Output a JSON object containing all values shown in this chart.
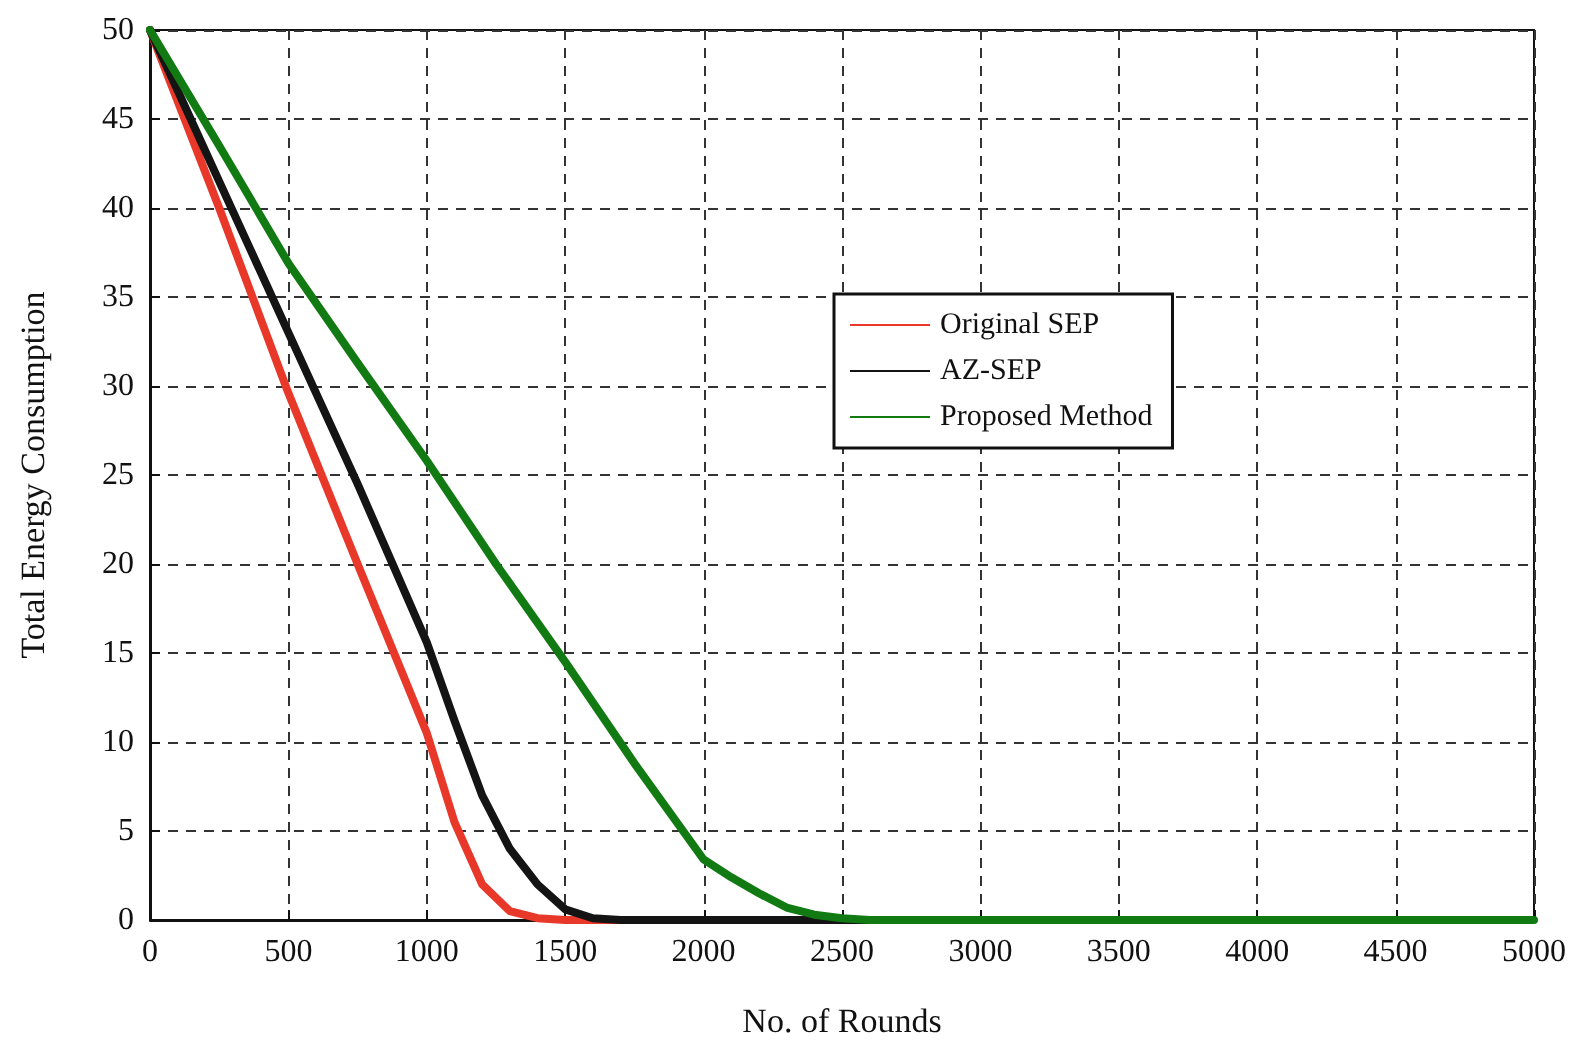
{
  "chart_data": {
    "type": "line",
    "xlabel": "No. of Rounds",
    "ylabel": "Total Energy Consumption",
    "xlim": [
      0,
      5000
    ],
    "xticks": [
      0,
      500,
      1000,
      1500,
      2000,
      2500,
      3000,
      3500,
      4000,
      4500,
      5000
    ],
    "ylim": [
      0,
      50
    ],
    "yticks": [
      0,
      5,
      10,
      15,
      20,
      25,
      30,
      35,
      40,
      45,
      50
    ],
    "grid": true,
    "legend": "right",
    "line_style": "solid",
    "series": [
      {
        "name": "Original SEP",
        "color": "#e8382a",
        "x": [
          0,
          250,
          500,
          750,
          1000,
          1100,
          1200,
          1300,
          1400,
          1500,
          1800
        ],
        "values": [
          50,
          40,
          29.6,
          20,
          10.5,
          5.5,
          2,
          0.5,
          0.1,
          0,
          0
        ]
      },
      {
        "name": "AZ-SEP",
        "color": "#141414",
        "x": [
          0,
          250,
          500,
          750,
          1000,
          1100,
          1200,
          1300,
          1400,
          1500,
          1600,
          1700,
          2800
        ],
        "values": [
          50,
          41.5,
          33,
          24.5,
          15.6,
          11.2,
          7,
          4,
          2,
          0.6,
          0.1,
          0,
          0
        ]
      },
      {
        "name": "Proposed Method",
        "color": "#127a12",
        "x": [
          0,
          250,
          500,
          750,
          1000,
          1250,
          1500,
          1750,
          2000,
          2100,
          2200,
          2300,
          2400,
          2500,
          2600,
          5000
        ],
        "values": [
          50,
          43.5,
          36.9,
          31.3,
          25.8,
          20,
          14.5,
          8.8,
          3.4,
          2.4,
          1.5,
          0.7,
          0.3,
          0.1,
          0,
          0
        ]
      }
    ]
  }
}
